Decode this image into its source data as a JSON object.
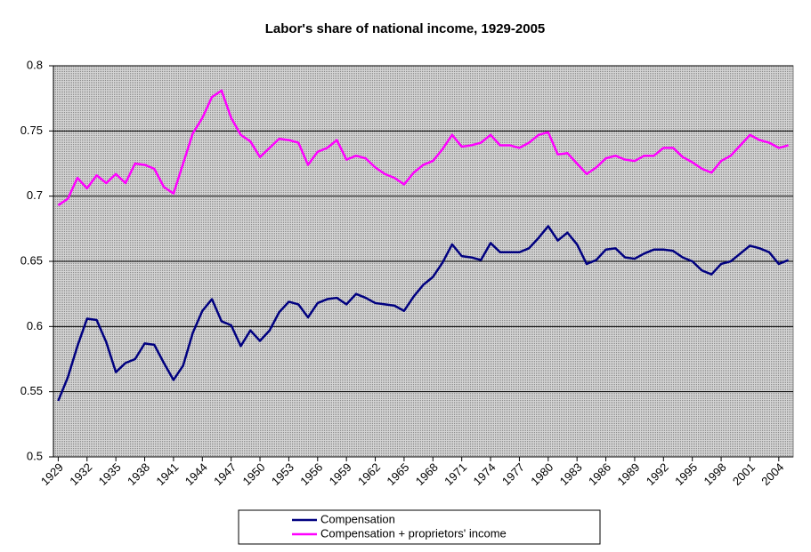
{
  "chart_data": {
    "type": "line",
    "title": "Labor's share of national income, 1929-2005",
    "x": [
      1929,
      1930,
      1931,
      1932,
      1933,
      1934,
      1935,
      1936,
      1937,
      1938,
      1939,
      1940,
      1941,
      1942,
      1943,
      1944,
      1945,
      1946,
      1947,
      1948,
      1949,
      1950,
      1951,
      1952,
      1953,
      1954,
      1955,
      1956,
      1957,
      1958,
      1959,
      1960,
      1961,
      1962,
      1963,
      1964,
      1965,
      1966,
      1967,
      1968,
      1969,
      1970,
      1971,
      1972,
      1973,
      1974,
      1975,
      1976,
      1977,
      1978,
      1979,
      1980,
      1981,
      1982,
      1983,
      1984,
      1985,
      1986,
      1987,
      1988,
      1989,
      1990,
      1991,
      1992,
      1993,
      1994,
      1995,
      1996,
      1997,
      1998,
      1999,
      2000,
      2001,
      2002,
      2003,
      2004,
      2005
    ],
    "series": [
      {
        "name": "Compensation",
        "color": "#000080",
        "values": [
          0.543,
          0.561,
          0.585,
          0.606,
          0.605,
          0.588,
          0.565,
          0.572,
          0.575,
          0.587,
          0.586,
          0.572,
          0.559,
          0.57,
          0.595,
          0.612,
          0.621,
          0.604,
          0.601,
          0.585,
          0.597,
          0.589,
          0.597,
          0.611,
          0.619,
          0.617,
          0.607,
          0.618,
          0.621,
          0.622,
          0.617,
          0.625,
          0.622,
          0.618,
          0.617,
          0.616,
          0.612,
          0.623,
          0.632,
          0.638,
          0.649,
          0.663,
          0.654,
          0.653,
          0.651,
          0.664,
          0.657,
          0.657,
          0.657,
          0.66,
          0.668,
          0.677,
          0.666,
          0.672,
          0.663,
          0.648,
          0.651,
          0.659,
          0.66,
          0.653,
          0.652,
          0.656,
          0.659,
          0.659,
          0.658,
          0.653,
          0.65,
          0.643,
          0.64,
          0.648,
          0.65,
          0.656,
          0.662,
          0.66,
          0.657,
          0.648,
          0.651
        ]
      },
      {
        "name": "Compensation + proprietors' income",
        "color": "#ff00ff",
        "values": [
          0.693,
          0.698,
          0.714,
          0.706,
          0.716,
          0.71,
          0.717,
          0.71,
          0.725,
          0.724,
          0.721,
          0.707,
          0.702,
          0.725,
          0.748,
          0.76,
          0.776,
          0.781,
          0.76,
          0.747,
          0.742,
          0.73,
          0.737,
          0.744,
          0.743,
          0.741,
          0.724,
          0.734,
          0.737,
          0.743,
          0.728,
          0.731,
          0.729,
          0.722,
          0.717,
          0.714,
          0.709,
          0.718,
          0.724,
          0.727,
          0.736,
          0.747,
          0.738,
          0.739,
          0.741,
          0.747,
          0.739,
          0.739,
          0.737,
          0.741,
          0.747,
          0.749,
          0.732,
          0.733,
          0.725,
          0.717,
          0.722,
          0.729,
          0.731,
          0.728,
          0.727,
          0.731,
          0.731,
          0.737,
          0.737,
          0.73,
          0.726,
          0.721,
          0.718,
          0.727,
          0.731,
          0.739,
          0.747,
          0.743,
          0.741,
          0.737,
          0.739
        ]
      }
    ],
    "xlim": [
      1928.5,
      2005.5
    ],
    "xticks": [
      1929,
      1932,
      1935,
      1938,
      1941,
      1944,
      1947,
      1950,
      1953,
      1956,
      1959,
      1962,
      1965,
      1968,
      1971,
      1974,
      1977,
      1980,
      1983,
      1986,
      1989,
      1992,
      1995,
      1998,
      2001,
      2004
    ],
    "ylim": [
      0.5,
      0.8
    ],
    "yticks": [
      0.5,
      0.55,
      0.6,
      0.65,
      0.7,
      0.75,
      0.8
    ],
    "grid": true,
    "legend": "bottom"
  }
}
